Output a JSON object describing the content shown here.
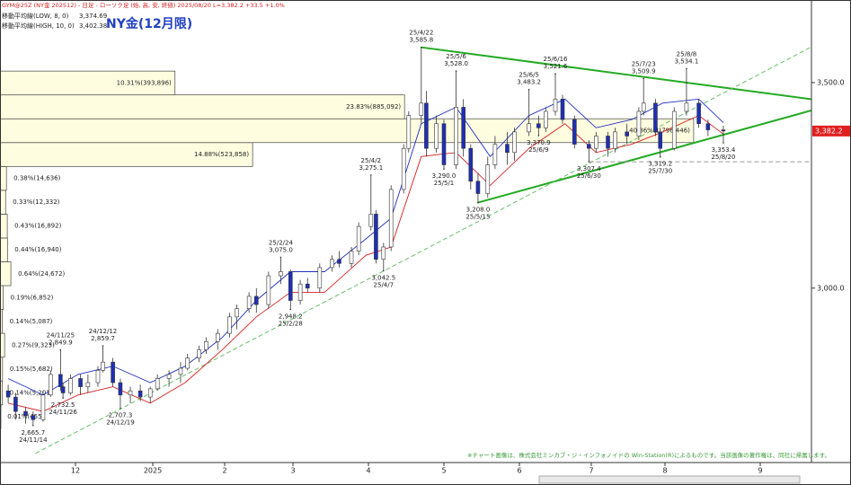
{
  "chart_data": {
    "type": "candlestick",
    "subtitle": "GYM@25Z (NY金 202512) - 日足 - ローソク足 (始, 高, 安, 終値)  2025/08/20 L=3,382.2 +33.5 +1.0%",
    "title": "NY金(12月限)",
    "footnote": "※チャート画像は、株式会社ミンカブ・ジ・インフォノイドの Win-Station(R)によるものです。当該画像の著作権は、同社に帰属します。",
    "ylim": [
      2580,
      3690
    ],
    "yticks": [
      {
        "value": 3000,
        "label": "3,000.0"
      },
      {
        "value": 3500,
        "label": "3,500.0"
      }
    ],
    "xticks": [
      {
        "value": "24/12/1",
        "label": "12"
      },
      {
        "value": "25/1/1",
        "label": "2025"
      },
      {
        "value": "25/2/1",
        "label": "2"
      },
      {
        "value": "25/3/1",
        "label": "3"
      },
      {
        "value": "25/4/1",
        "label": "4"
      },
      {
        "value": "25/5/1",
        "label": "5"
      },
      {
        "value": "25/6/1",
        "label": "6"
      },
      {
        "value": "25/7/1",
        "label": "7"
      },
      {
        "value": "25/8/1",
        "label": "8"
      },
      {
        "value": "25/9/1",
        "label": "9"
      }
    ],
    "grid": false,
    "up_color": "#ffffff",
    "down_color": "#1f2fb5",
    "last_price": {
      "value": 3382.2,
      "label": "3,382.2",
      "color": "#e02020"
    },
    "x": [
      "24/11/4",
      "24/11/7",
      "24/11/11",
      "24/11/14",
      "24/11/18",
      "24/11/21",
      "24/11/25",
      "24/11/26",
      "24/11/29",
      "24/12/3",
      "24/12/6",
      "24/12/10",
      "24/12/12",
      "24/12/16",
      "24/12/19",
      "24/12/23",
      "24/12/27",
      "24/12/31",
      "25/1/3",
      "25/1/8",
      "25/1/13",
      "25/1/16",
      "25/1/21",
      "25/1/24",
      "25/1/29",
      "25/2/3",
      "25/2/6",
      "25/2/11",
      "25/2/14",
      "25/2/19",
      "25/2/24",
      "25/2/28",
      "25/3/4",
      "25/3/7",
      "25/3/12",
      "25/3/17",
      "25/3/20",
      "25/3/25",
      "25/3/28",
      "25/4/2",
      "25/4/4",
      "25/4/7",
      "25/4/10",
      "25/4/15",
      "25/4/17",
      "25/4/22",
      "25/4/24",
      "25/4/28",
      "25/5/1",
      "25/5/6",
      "25/5/9",
      "25/5/12",
      "25/5/15",
      "25/5/19",
      "25/5/22",
      "25/5/27",
      "25/5/30",
      "25/6/5",
      "25/6/9",
      "25/6/12",
      "25/6/16",
      "25/6/19",
      "25/6/24",
      "25/6/30",
      "25/7/3",
      "25/7/8",
      "25/7/11",
      "25/7/16",
      "25/7/21",
      "25/7/23",
      "25/7/28",
      "25/7/30",
      "25/8/4",
      "25/8/8",
      "25/8/12",
      "25/8/15",
      "25/8/20"
    ],
    "open": [
      2750,
      2735,
      2700,
      2690,
      2680,
      2740,
      2790,
      2760,
      2745,
      2780,
      2760,
      2770,
      2800,
      2820,
      2770,
      2740,
      2750,
      2735,
      2755,
      2780,
      2790,
      2805,
      2830,
      2850,
      2870,
      2890,
      2930,
      2950,
      2980,
      2960,
      3030,
      3040,
      2970,
      3010,
      3000,
      3050,
      3070,
      3060,
      3090,
      3150,
      3180,
      3070,
      3100,
      3240,
      3340,
      3420,
      3450,
      3340,
      3400,
      3300,
      3440,
      3340,
      3260,
      3230,
      3300,
      3350,
      3330,
      3380,
      3400,
      3390,
      3430,
      3460,
      3410,
      3350,
      3340,
      3370,
      3340,
      3380,
      3370,
      3430,
      3450,
      3380,
      3340,
      3430,
      3450,
      3400,
      3385
    ],
    "high": [
      2765,
      2745,
      2710,
      2700,
      2750,
      2800,
      2849.9,
      2770,
      2790,
      2790,
      2790,
      2810,
      2859.7,
      2830,
      2780,
      2760,
      2765,
      2760,
      2790,
      2800,
      2820,
      2840,
      2860,
      2880,
      2900,
      2940,
      2960,
      2990,
      3000,
      3040,
      3075.0,
      3045,
      3020,
      3025,
      3060,
      3080,
      3090,
      3100,
      3160,
      3275.1,
      3190,
      3110,
      3250,
      3350,
      3430,
      3585.8,
      3480,
      3420,
      3410,
      3528.0,
      3460,
      3350,
      3280,
      3320,
      3370,
      3380,
      3390,
      3483.2,
      3420,
      3440,
      3521.6,
      3470,
      3420,
      3360,
      3380,
      3380,
      3390,
      3400,
      3440,
      3509.9,
      3460,
      3390,
      3440,
      3534.1,
      3460,
      3410,
      3395
    ],
    "low": [
      2720,
      2680,
      2670,
      2665.7,
      2675,
      2735,
      2750,
      2732.5,
      2740,
      2740,
      2745,
      2760,
      2795,
      2760,
      2707.3,
      2720,
      2725,
      2720,
      2750,
      2760,
      2770,
      2800,
      2820,
      2840,
      2850,
      2880,
      2900,
      2940,
      2940,
      2950,
      3010,
      2948.2,
      2960,
      2990,
      2990,
      3040,
      3050,
      3050,
      3080,
      3140,
      3060,
      3042.5,
      3090,
      3230,
      3330,
      3400,
      3320,
      3330,
      3290.0,
      3290,
      3320,
      3240,
      3208.0,
      3220,
      3290,
      3300,
      3310,
      3370,
      3370.9,
      3380,
      3420,
      3400,
      3340,
      3307.4,
      3330,
      3320,
      3330,
      3350,
      3360,
      3420,
      3370,
      3319.2,
      3335,
      3420,
      3390,
      3370,
      3353.4
    ],
    "close": [
      2735,
      2700,
      2690,
      2680,
      2740,
      2790,
      2760,
      2745,
      2780,
      2760,
      2770,
      2800,
      2820,
      2770,
      2740,
      2750,
      2735,
      2755,
      2780,
      2790,
      2805,
      2830,
      2850,
      2870,
      2890,
      2930,
      2950,
      2980,
      2960,
      3030,
      3040,
      2970,
      3010,
      3000,
      3050,
      3070,
      3060,
      3090,
      3150,
      3180,
      3070,
      3100,
      3240,
      3340,
      3420,
      3450,
      3340,
      3400,
      3300,
      3440,
      3340,
      3260,
      3230,
      3300,
      3350,
      3330,
      3380,
      3400,
      3390,
      3430,
      3460,
      3410,
      3350,
      3340,
      3370,
      3340,
      3380,
      3370,
      3430,
      3450,
      3380,
      3340,
      3430,
      3450,
      3400,
      3385,
      3382.2
    ],
    "series": [
      {
        "name": "移動平均線(LOW, 8, 0)",
        "last_label": "3,374.69",
        "color": "#d42020",
        "x": [
          "24/11/4",
          "24/11/18",
          "24/12/2",
          "24/12/16",
          "24/12/31",
          "25/1/15",
          "25/1/31",
          "25/2/14",
          "25/2/28",
          "25/3/14",
          "25/3/31",
          "25/4/10",
          "25/4/22",
          "25/5/6",
          "25/5/20",
          "25/6/5",
          "25/6/20",
          "25/7/3",
          "25/7/18",
          "25/7/31",
          "25/8/12",
          "25/8/20"
        ],
        "values": [
          2720,
          2700,
          2740,
          2760,
          2720,
          2770,
          2850,
          2930,
          2990,
          2990,
          3080,
          3100,
          3320,
          3330,
          3250,
          3340,
          3400,
          3330,
          3350,
          3380,
          3420,
          3374.69
        ]
      },
      {
        "name": "移動平均線(HIGH, 10, 0)",
        "last_label": "3,402.38",
        "color": "#2030c0",
        "x": [
          "24/11/4",
          "24/11/18",
          "24/12/2",
          "24/12/16",
          "24/12/31",
          "25/1/15",
          "25/1/31",
          "25/2/14",
          "25/2/28",
          "25/3/14",
          "25/3/31",
          "25/4/10",
          "25/4/22",
          "25/5/6",
          "25/5/20",
          "25/6/5",
          "25/6/20",
          "25/7/3",
          "25/7/18",
          "25/7/31",
          "25/8/12",
          "25/8/20"
        ],
        "values": [
          2780,
          2740,
          2790,
          2810,
          2770,
          2810,
          2880,
          2970,
          3040,
          3040,
          3120,
          3170,
          3400,
          3440,
          3320,
          3420,
          3460,
          3390,
          3410,
          3450,
          3460,
          3402.38
        ]
      }
    ],
    "annotations": {
      "x": [
        "24/11/14",
        "24/11/25",
        "24/11/26",
        "24/12/12",
        "24/12/19",
        "25/2/24",
        "25/2/28",
        "25/4/2",
        "25/4/7",
        "25/4/22",
        "25/5/1",
        "25/5/6",
        "25/5/15",
        "25/6/5",
        "25/6/9",
        "25/6/16",
        "25/6/30",
        "25/7/23",
        "25/7/30",
        "25/8/8",
        "25/8/20"
      ],
      "values": [
        2665.7,
        2849.9,
        2732.5,
        2859.7,
        2707.3,
        3075.0,
        2948.2,
        3275.1,
        3042.5,
        3585.8,
        3290.0,
        3528.0,
        3208.0,
        3483.2,
        3370.9,
        3521.6,
        3307.4,
        3509.9,
        3319.2,
        3534.1,
        3353.4
      ],
      "value_labels": [
        "2,665.7",
        "2,849.9",
        "2,732.5",
        "2,859.7",
        "2,707.3",
        "3,075.0",
        "2,948.2",
        "3,275.1",
        "3,042.5",
        "3,585.8",
        "3,290.0",
        "3,528.0",
        "3,208.0",
        "3,483.2",
        "3,370.9",
        "3,521.6",
        "3,307.4",
        "3,509.9",
        "3,319.2",
        "3,534.1",
        "3,353.4"
      ],
      "side": [
        "below",
        "above",
        "below",
        "above",
        "below",
        "above",
        "below",
        "above",
        "below",
        "above",
        "below",
        "above",
        "below",
        "above",
        "below",
        "above",
        "below",
        "above",
        "below",
        "above",
        "below"
      ]
    },
    "trendlines": [
      {
        "color": "#22aa22",
        "style": "solid",
        "x": [
          "25/4/22",
          "25/8/8"
        ],
        "values": [
          3585.8,
          3500
        ]
      },
      {
        "color": "#22aa22",
        "style": "solid",
        "x": [
          "25/5/15",
          "25/8/20"
        ],
        "values": [
          3208.0,
          3373
        ]
      },
      {
        "color": "#66c066",
        "style": "dashed",
        "x": [
          "24/11/15",
          "25/9/20"
        ],
        "values": [
          2598,
          3596
        ]
      },
      {
        "color": "#999999",
        "style": "dashed",
        "x": [
          "25/6/30",
          "25/8/20"
        ],
        "values": [
          3307.4,
          3307.4
        ]
      }
    ],
    "profile": {
      "bins": [
        2658,
        2716,
        2774,
        2832,
        2890,
        2948,
        3006,
        3064,
        3122,
        3180,
        3238,
        3296,
        3354,
        3412,
        3470,
        3528
      ],
      "values": [
        0.01,
        0.14,
        0.15,
        0.27,
        0.14,
        0.19,
        0.64,
        0.44,
        0.43,
        0.33,
        0.38,
        14.88,
        40.86,
        23.83,
        10.31
      ],
      "value_labels": [
        "0.01%(455)",
        "0.14%(5,201)",
        "0.15%(5,682)",
        "0.27%(9,323)",
        "0.14%(5,087)",
        "0.19%(6,852)",
        "0.64%(24,672)",
        "0.44%(16,940)",
        "0.43%(16,892)",
        "0.33%(12,332)",
        "0.38%(14,636)",
        "14.88%(523,858)",
        "40.86%(1,796,446)",
        "23.83%(885,092)",
        "10.31%(393,896)"
      ],
      "xlim": [
        0,
        47.8
      ],
      "color": "#fffde0"
    }
  }
}
